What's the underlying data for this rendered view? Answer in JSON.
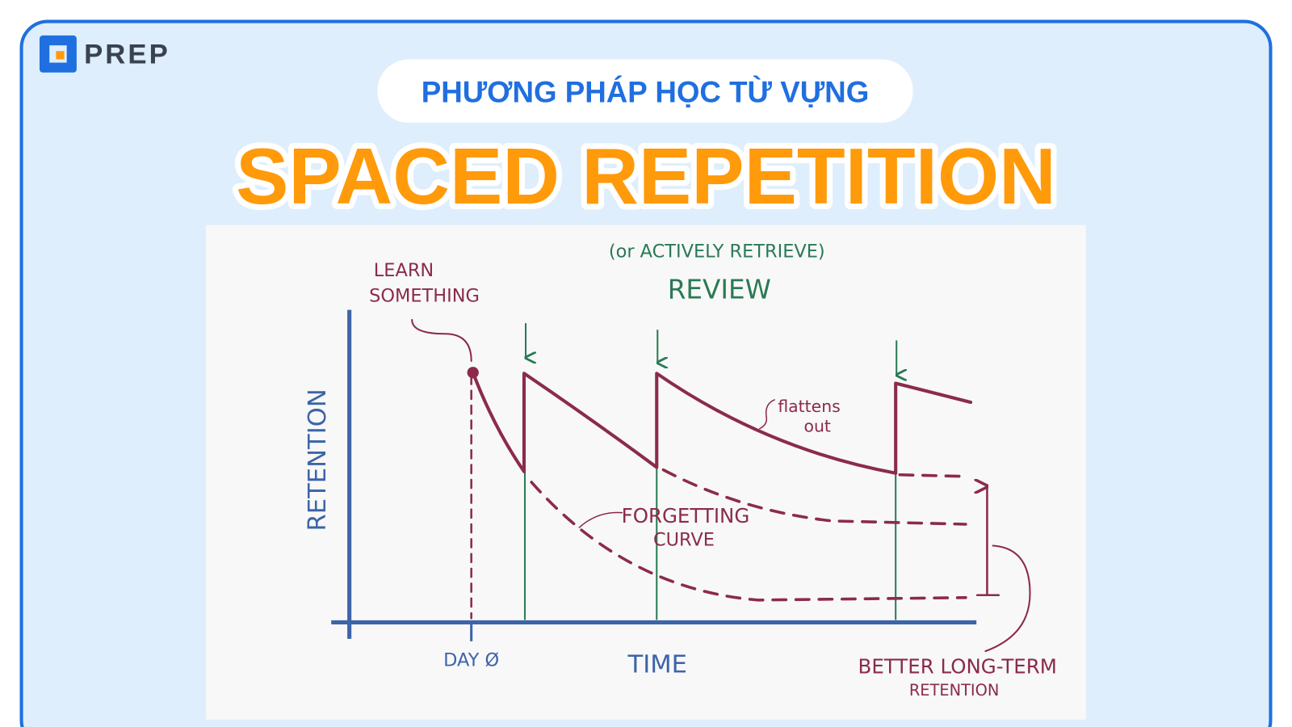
{
  "logo": {
    "text": "PREP"
  },
  "header": {
    "subtitle": "PHƯƠNG PHÁP HỌC TỪ VỰNG",
    "title": "SPACED REPETITION"
  },
  "diagram": {
    "review_note": "(or ACTIVELY RETRIEVE)",
    "review_label": "REVIEW",
    "learn_label": [
      "LEARN",
      "SOMETHING"
    ],
    "y_axis_label": "RETENTION",
    "day_label": "DAY Ø",
    "x_axis_label": "TIME",
    "flattens_label": [
      "flattens",
      "out"
    ],
    "forgetting_label": [
      "FORGETTING",
      "CURVE"
    ],
    "better_label": [
      "BETTER LONG-TERM",
      "RETENTION"
    ]
  }
}
